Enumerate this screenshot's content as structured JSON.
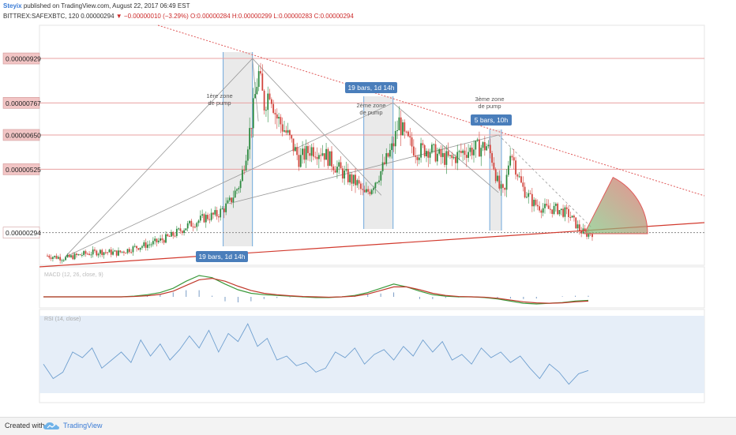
{
  "header": {
    "user": "Steyix",
    "published_text": "published on TradingView.com, August 22, 2017 06:49 EST",
    "symbol_line": "BITTREX:SAFEXBTC, 120",
    "last_price": "0.00000294",
    "change": "▼ −0.00000010 (−3.29%)",
    "ohlc": "O:0.00000284 H:0.00000299 L:0.00000283 C:0.00000294"
  },
  "footer": {
    "created_with": "Created with",
    "brand": "TradingView"
  },
  "colors": {
    "up": "#2c8a3f",
    "down": "#d2453d",
    "resistance": "#e05a5a",
    "support": "#d23a2e",
    "level_line": "#e8a0a0",
    "price_label_bg": "#f2c5c5",
    "current_label_bg": "#ffffff",
    "pump_zone": "#d9d9d9",
    "pump_line": "#6fa8dc",
    "callout_bg": "#4a7ebb",
    "macd_line": "#3c9a3c",
    "signal_line": "#c0392b",
    "rsi_line": "#6f9fcf",
    "rsi_band": "#e6eef8"
  },
  "chart_data": {
    "type": "candlestick",
    "symbol": "SAFEXBTC",
    "timeframe": "120",
    "ylim": [
      1.75e-06,
      1.05e-05
    ],
    "price_levels": [
      {
        "label": "0.00000929",
        "value": 9.29e-06
      },
      {
        "label": "0.00000767",
        "value": 7.67e-06
      },
      {
        "label": "0.00000650",
        "value": 6.5e-06
      },
      {
        "label": "0.00000525",
        "value": 5.25e-06
      },
      {
        "label": "0.00000294",
        "value": 2.94e-06,
        "current": true
      }
    ],
    "close_path": [
      [
        0,
        2.1e-06
      ],
      [
        3,
        2e-06
      ],
      [
        6,
        2.15e-06
      ],
      [
        9,
        2.25e-06
      ],
      [
        12,
        2.2e-06
      ],
      [
        15,
        2.4e-06
      ],
      [
        18,
        2.55e-06
      ],
      [
        21,
        2.8e-06
      ],
      [
        24,
        3.2e-06
      ],
      [
        27,
        3.5e-06
      ],
      [
        29,
        3.6e-06
      ],
      [
        31,
        4e-06
      ],
      [
        33,
        4.8e-06
      ],
      [
        34,
        6e-06
      ],
      [
        35,
        7.2e-06
      ],
      [
        36,
        8.8e-06
      ],
      [
        37,
        7.6e-06
      ],
      [
        38,
        8.2e-06
      ],
      [
        39,
        7.2e-06
      ],
      [
        41,
        6.5e-06
      ],
      [
        43,
        5.6e-06
      ],
      [
        45,
        6e-06
      ],
      [
        47,
        5.9e-06
      ],
      [
        49,
        5.4e-06
      ],
      [
        51,
        5e-06
      ],
      [
        53,
        4.7e-06
      ],
      [
        54,
        4.3e-06
      ],
      [
        55,
        4.5e-06
      ],
      [
        57,
        5.2e-06
      ],
      [
        59,
        6.1e-06
      ],
      [
        60,
        7e-06
      ],
      [
        61,
        6.4e-06
      ],
      [
        63,
        5.9e-06
      ],
      [
        65,
        6e-06
      ],
      [
        67,
        5.7e-06
      ],
      [
        69,
        5.6e-06
      ],
      [
        71,
        5.9e-06
      ],
      [
        73,
        6e-06
      ],
      [
        75,
        6.1e-06
      ],
      [
        76,
        5.6e-06
      ],
      [
        77,
        4.6e-06
      ],
      [
        78,
        4.3e-06
      ],
      [
        79,
        6e-06
      ],
      [
        80,
        5.3e-06
      ],
      [
        81,
        4.6e-06
      ],
      [
        83,
        4e-06
      ],
      [
        85,
        3.8e-06
      ],
      [
        87,
        3.8e-06
      ],
      [
        89,
        3.6e-06
      ],
      [
        91,
        3e-06
      ],
      [
        92,
        2.9e-06
      ],
      [
        93,
        2.94e-06
      ]
    ],
    "pump_zones": [
      {
        "label": "1ère zone de pump",
        "start": 30,
        "end": 35
      },
      {
        "label": "2ème zone de pump",
        "start": 54,
        "end": 59
      },
      {
        "label": "3ème zone de pump",
        "start": 75.5,
        "end": 77.5
      }
    ],
    "bars_callouts": [
      {
        "label": "19 bars, 1d 14h",
        "anchor": 59
      },
      {
        "label": "5 bars, 10h",
        "anchor": 77
      },
      {
        "label": "19 bars, 1d 14h",
        "anchor": 35
      }
    ],
    "macd": {
      "name": "MACD (12, 26, close, 9)",
      "macd": [
        0,
        0,
        0,
        0,
        0,
        0,
        0,
        0.1,
        0.3,
        0.6,
        1.2,
        2.2,
        3.0,
        2.7,
        1.8,
        1.0,
        0.5,
        0.3,
        0.2,
        0.1,
        0,
        -0.1,
        -0.1,
        0,
        0.2,
        0.6,
        1.2,
        1.8,
        1.4,
        0.8,
        0.3,
        0.1,
        0,
        0,
        -0.1,
        -0.3,
        -0.6,
        -0.9,
        -1.0,
        -0.9,
        -0.8,
        -0.6,
        -0.5
      ],
      "signal": [
        0,
        0,
        0,
        0,
        0,
        0,
        0,
        0.05,
        0.15,
        0.35,
        0.8,
        1.6,
        2.4,
        2.6,
        2.2,
        1.5,
        0.9,
        0.5,
        0.3,
        0.15,
        0.05,
        0,
        -0.05,
        0,
        0.1,
        0.4,
        0.9,
        1.4,
        1.4,
        1.0,
        0.5,
        0.2,
        0.05,
        0,
        -0.05,
        -0.2,
        -0.45,
        -0.7,
        -0.85,
        -0.9,
        -0.85,
        -0.7,
        -0.6
      ]
    },
    "rsi": {
      "name": "RSI (14, close)",
      "values": [
        40,
        22,
        30,
        55,
        48,
        60,
        35,
        45,
        55,
        42,
        70,
        50,
        65,
        45,
        58,
        75,
        60,
        82,
        55,
        78,
        68,
        90,
        62,
        72,
        45,
        50,
        38,
        42,
        30,
        35,
        55,
        48,
        60,
        40,
        52,
        58,
        45,
        62,
        50,
        70,
        55,
        68,
        45,
        52,
        40,
        60,
        48,
        55,
        42,
        50,
        35,
        22,
        40,
        30,
        15,
        28,
        32
      ]
    }
  }
}
